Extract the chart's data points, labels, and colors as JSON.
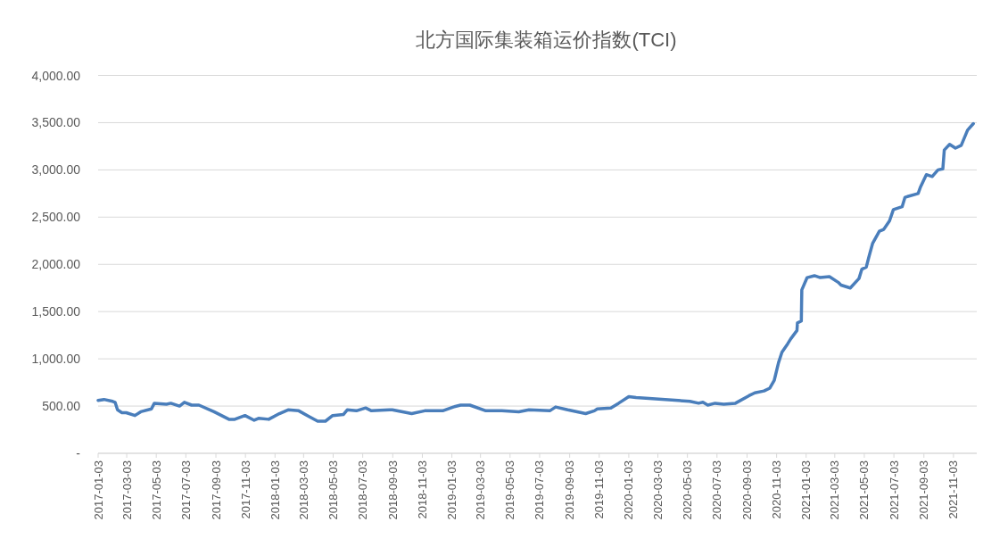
{
  "chart_data": {
    "type": "line",
    "title": "北方国际集装箱运价指数(TCI)",
    "x": [
      "2017-01-03",
      "2017-01-15",
      "2017-02-02",
      "2017-02-07",
      "2017-02-12",
      "2017-02-21",
      "2017-03-02",
      "2017-03-20",
      "2017-04-01",
      "2017-04-23",
      "2017-04-29",
      "2017-05-24",
      "2017-06-02",
      "2017-06-20",
      "2017-06-30",
      "2017-07-15",
      "2017-07-30",
      "2017-08-30",
      "2017-09-30",
      "2017-10-12",
      "2017-11-02",
      "2017-11-21",
      "2017-11-30",
      "2017-12-21",
      "2018-01-12",
      "2018-01-30",
      "2018-02-21",
      "2018-03-14",
      "2018-04-01",
      "2018-04-17",
      "2018-05-02",
      "2018-05-24",
      "2018-06-01",
      "2018-06-20",
      "2018-07-09",
      "2018-07-21",
      "2018-08-27",
      "2018-09-02",
      "2018-10-12",
      "2018-11-08",
      "2018-12-15",
      "2019-01-06",
      "2019-01-21",
      "2019-02-09",
      "2019-03-14",
      "2019-04-16",
      "2019-05-21",
      "2019-06-11",
      "2019-07-24",
      "2019-08-05",
      "2019-08-30",
      "2019-10-06",
      "2019-10-24",
      "2019-10-30",
      "2019-11-27",
      "2019-12-13",
      "2020-01-03",
      "2020-01-18",
      "2020-05-08",
      "2020-05-26",
      "2020-06-04",
      "2020-06-14",
      "2020-06-29",
      "2020-07-17",
      "2020-08-10",
      "2020-09-07",
      "2020-09-19",
      "2020-10-08",
      "2020-10-20",
      "2020-10-29",
      "2020-11-07",
      "2020-11-14",
      "2020-11-26",
      "2020-12-02",
      "2020-12-15",
      "2020-12-16",
      "2020-12-24",
      "2020-12-25",
      "2021-01-05",
      "2021-01-20",
      "2021-02-01",
      "2021-02-20",
      "2021-03-10",
      "2021-03-16",
      "2021-04-04",
      "2021-04-22",
      "2021-04-28",
      "2021-05-07",
      "2021-05-13",
      "2021-05-20",
      "2021-06-03",
      "2021-06-12",
      "2021-06-24",
      "2021-07-02",
      "2021-07-20",
      "2021-07-26",
      "2021-08-22",
      "2021-08-27",
      "2021-09-08",
      "2021-09-20",
      "2021-10-02",
      "2021-10-12",
      "2021-10-15",
      "2021-10-26",
      "2021-11-07",
      "2021-11-19",
      "2021-12-02",
      "2021-12-14"
    ],
    "series": [
      {
        "color": "#4a7ebb",
        "values": [
          560,
          570,
          550,
          540,
          460,
          430,
          430,
          400,
          440,
          470,
          530,
          520,
          530,
          500,
          540,
          510,
          510,
          440,
          360,
          360,
          400,
          350,
          370,
          360,
          420,
          460,
          450,
          390,
          340,
          340,
          400,
          410,
          460,
          450,
          480,
          450,
          460,
          460,
          420,
          450,
          450,
          490,
          510,
          510,
          450,
          450,
          440,
          460,
          450,
          490,
          460,
          420,
          450,
          470,
          480,
          530,
          600,
          590,
          550,
          530,
          540,
          510,
          530,
          520,
          530,
          610,
          640,
          660,
          690,
          770,
          960,
          1070,
          1160,
          1210,
          1300,
          1380,
          1400,
          1730,
          1860,
          1880,
          1860,
          1870,
          1810,
          1780,
          1750,
          1850,
          1950,
          1970,
          2090,
          2220,
          2350,
          2370,
          2460,
          2580,
          2610,
          2710,
          2750,
          2820,
          2950,
          2930,
          3000,
          3010,
          3210,
          3270,
          3230,
          3260,
          3420,
          3490
        ]
      }
    ],
    "xlim": [
      "2017-01-03",
      "2021-12-21"
    ],
    "xticks": [
      "2017-01-03",
      "2017-03-03",
      "2017-05-03",
      "2017-07-03",
      "2017-09-03",
      "2017-11-03",
      "2018-01-03",
      "2018-03-03",
      "2018-05-03",
      "2018-07-03",
      "2018-09-03",
      "2018-11-03",
      "2019-01-03",
      "2019-03-03",
      "2019-05-03",
      "2019-07-03",
      "2019-09-03",
      "2019-11-03",
      "2020-01-03",
      "2020-03-03",
      "2020-05-03",
      "2020-07-03",
      "2020-09-03",
      "2020-11-03",
      "2021-01-03",
      "2021-03-03",
      "2021-05-03",
      "2021-07-03",
      "2021-09-03",
      "2021-11-03"
    ],
    "ylim": [
      0,
      4000
    ],
    "yticks": [
      {
        "value": 0,
        "label": "-"
      },
      {
        "value": 500,
        "label": "500.00"
      },
      {
        "value": 1000,
        "label": "1,000.00"
      },
      {
        "value": 1500,
        "label": "1,500.00"
      },
      {
        "value": 2000,
        "label": "2,000.00"
      },
      {
        "value": 2500,
        "label": "2,500.00"
      },
      {
        "value": 3000,
        "label": "3,000.00"
      },
      {
        "value": 3500,
        "label": "3,500.00"
      },
      {
        "value": 4000,
        "label": "4,000.00"
      }
    ],
    "grid": "y",
    "marker": "none",
    "line_style": "solid"
  }
}
